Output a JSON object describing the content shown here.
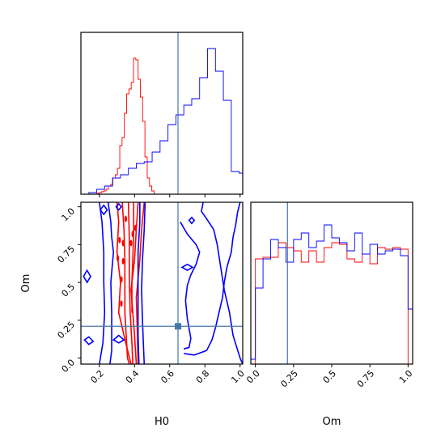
{
  "chart_data": {
    "type": "corner",
    "parameters": [
      "H0",
      "Om"
    ],
    "truth": {
      "H0": 0.647,
      "Om": 0.21
    },
    "colors": {
      "red": "#ff0000",
      "blue": "#0000ff",
      "truth": "#4477aa"
    },
    "panels": [
      {
        "id": "hist-H0",
        "type": "step-histogram",
        "xlim": [
          0.095,
          1.015
        ],
        "ylim": [
          0,
          1
        ],
        "xticks": [
          0.2,
          0.4,
          0.6,
          0.8,
          1.0
        ],
        "series": [
          {
            "name": "red",
            "color": "#ff0000",
            "edges": [
              0.095,
              0.108,
              0.121,
              0.134,
              0.147,
              0.16,
              0.173,
              0.186,
              0.199,
              0.212,
              0.225,
              0.238,
              0.251,
              0.264,
              0.277,
              0.29,
              0.303,
              0.316,
              0.329,
              0.342,
              0.355,
              0.368,
              0.381,
              0.394,
              0.407,
              0.42,
              0.433,
              0.446,
              0.459,
              0.472,
              0.485,
              0.498,
              0.511,
              0.524
            ],
            "heights": [
              0,
              0,
              0,
              0,
              0,
              0,
              0,
              0.005,
              0.01,
              0.015,
              0.02,
              0.03,
              0.05,
              0.06,
              0.1,
              0.12,
              0.16,
              0.3,
              0.35,
              0.5,
              0.62,
              0.65,
              0.69,
              0.84,
              0.83,
              0.71,
              0.6,
              0.45,
              0.23,
              0.1,
              0.05,
              0.02,
              0
            ]
          },
          {
            "name": "blue",
            "color": "#0000ff",
            "edges": [
              0.095,
              0.14,
              0.185,
              0.23,
              0.275,
              0.32,
              0.365,
              0.41,
              0.455,
              0.5,
              0.545,
              0.59,
              0.635,
              0.68,
              0.725,
              0.77,
              0.815,
              0.86,
              0.905,
              0.95,
              0.995,
              1.015
            ],
            "heights": [
              0,
              0.01,
              0.03,
              0.05,
              0.1,
              0.12,
              0.16,
              0.19,
              0.2,
              0.26,
              0.33,
              0.43,
              0.49,
              0.55,
              0.59,
              0.72,
              0.9,
              0.76,
              0.58,
              0.14,
              0.13
            ]
          }
        ]
      },
      {
        "id": "hist-Om",
        "type": "step-histogram",
        "xlim": [
          -0.03,
          1.03
        ],
        "ylim": [
          0,
          1
        ],
        "xticks": [
          0.0,
          0.25,
          0.5,
          0.75,
          1.0
        ],
        "series": [
          {
            "name": "red",
            "color": "#ff0000",
            "edges": [
              0,
              0.05,
              0.1,
              0.15,
              0.2,
              0.25,
              0.3,
              0.35,
              0.4,
              0.45,
              0.5,
              0.55,
              0.6,
              0.65,
              0.7,
              0.75,
              0.8,
              0.85,
              0.9,
              0.95,
              1.0
            ],
            "heights": [
              0.65,
              0.66,
              0.66,
              0.75,
              0.72,
              0.7,
              0.63,
              0.7,
              0.63,
              0.72,
              0.75,
              0.74,
              0.65,
              0.63,
              0.68,
              0.62,
              0.72,
              0.71,
              0.72,
              0.71
            ]
          },
          {
            "name": "blue",
            "color": "#0000ff",
            "edges": [
              -0.03,
              0,
              0.05,
              0.1,
              0.15,
              0.2,
              0.25,
              0.3,
              0.35,
              0.4,
              0.45,
              0.5,
              0.55,
              0.6,
              0.65,
              0.7,
              0.75,
              0.8,
              0.85,
              0.9,
              0.95,
              1.0,
              1.03
            ],
            "heights": [
              0.03,
              0.47,
              0.65,
              0.77,
              0.72,
              0.63,
              0.77,
              0.81,
              0.72,
              0.76,
              0.86,
              0.78,
              0.75,
              0.7,
              0.81,
              0.68,
              0.74,
              0.68,
              0.7,
              0.71,
              0.67,
              0.34
            ]
          }
        ]
      },
      {
        "id": "joint-H0-Om",
        "type": "contour",
        "xlim": [
          0.095,
          1.015
        ],
        "ylim": [
          -0.04,
          1.03
        ],
        "xticks": [
          0.2,
          0.4,
          0.6,
          0.8,
          1.0
        ],
        "yticks": [
          0.0,
          0.25,
          0.5,
          0.75,
          1.0
        ],
        "series": [
          {
            "name": "red",
            "color": "#ff0000",
            "contours": [
              [
                [
                  0.3,
                  1.03
                ],
                [
                  0.31,
                  0.9
                ],
                [
                  0.3,
                  0.7
                ],
                [
                  0.32,
                  0.5
                ],
                [
                  0.31,
                  0.3
                ],
                [
                  0.35,
                  0.1
                ],
                [
                  0.38,
                  -0.04
                ]
              ],
              [
                [
                  0.455,
                  1.03
                ],
                [
                  0.44,
                  0.85
                ],
                [
                  0.43,
                  0.65
                ],
                [
                  0.41,
                  0.4
                ],
                [
                  0.415,
                  0.2
                ],
                [
                  0.42,
                  -0.04
                ]
              ],
              [
                [
                  0.33,
                  1.03
                ],
                [
                  0.34,
                  0.85
                ],
                [
                  0.345,
                  0.65
                ],
                [
                  0.345,
                  0.45
                ],
                [
                  0.345,
                  0.3
                ],
                [
                  0.355,
                  0.1
                ],
                [
                  0.36,
                  0.0
                ],
                [
                  0.37,
                  -0.04
                ]
              ],
              [
                [
                  0.42,
                  1.03
                ],
                [
                  0.41,
                  0.85
                ],
                [
                  0.4,
                  0.65
                ],
                [
                  0.38,
                  0.45
                ],
                [
                  0.39,
                  0.3
                ],
                [
                  0.4,
                  0.15
                ],
                [
                  0.41,
                  -0.04
                ]
              ],
              [
                [
                  0.365,
                  1.03
                ],
                [
                  0.37,
                  0.8
                ],
                [
                  0.37,
                  0.55
                ],
                [
                  0.375,
                  0.3
                ],
                [
                  0.385,
                  0.1
                ],
                [
                  0.39,
                  -0.04
                ]
              ],
              [
                [
                  0.395,
                  1.03
                ],
                [
                  0.395,
                  0.85
                ],
                [
                  0.39,
                  0.65
                ],
                [
                  0.385,
                  0.5
                ],
                [
                  0.385,
                  0.3
                ]
              ]
            ],
            "dots": [
              [
                0.315,
                0.78
              ],
              [
                0.335,
                0.76
              ],
              [
                0.305,
                0.66
              ],
              [
                0.335,
                0.64
              ],
              [
                0.325,
                0.52
              ],
              [
                0.325,
                0.36
              ],
              [
                0.39,
                0.82
              ],
              [
                0.38,
                0.76
              ],
              [
                0.405,
                0.86
              ],
              [
                0.35,
                0.92
              ]
            ]
          },
          {
            "name": "blue",
            "color": "#0000ff",
            "contours": [
              [
                [
                  0.2,
                  1.03
                ],
                [
                  0.215,
                  0.9
                ],
                [
                  0.225,
                  0.7
                ],
                [
                  0.225,
                  0.5
                ],
                [
                  0.23,
                  0.3
                ],
                [
                  0.22,
                  0.1
                ],
                [
                  0.2,
                  -0.04
                ]
              ],
              [
                [
                  0.46,
                  1.03
                ],
                [
                  0.455,
                  0.85
                ],
                [
                  0.445,
                  0.65
                ],
                [
                  0.44,
                  0.45
                ],
                [
                  0.445,
                  0.25
                ],
                [
                  0.45,
                  0.1
                ],
                [
                  0.455,
                  -0.04
                ]
              ],
              [
                [
                  0.25,
                  1.03
                ],
                [
                  0.265,
                  0.9
                ],
                [
                  0.27,
                  0.8
                ],
                [
                  0.28,
                  0.7
                ],
                [
                  0.265,
                  0.5
                ],
                [
                  0.27,
                  0.3
                ],
                [
                  0.27,
                  0.15
                ],
                [
                  0.27,
                  0.05
                ],
                [
                  0.26,
                  -0.04
                ]
              ],
              [
                [
                  0.43,
                  1.03
                ],
                [
                  0.43,
                  0.9
                ],
                [
                  0.42,
                  0.7
                ],
                [
                  0.42,
                  0.5
                ],
                [
                  0.42,
                  0.3
                ],
                [
                  0.42,
                  0.15
                ],
                [
                  0.425,
                  -0.04
                ]
              ],
              [
                [
                  0.68,
                  0.03
                ],
                [
                  0.74,
                  0.02
                ],
                [
                  0.81,
                  0.05
                ],
                [
                  0.84,
                  0.12
                ],
                [
                  0.86,
                  0.2
                ],
                [
                  0.88,
                  0.3
                ],
                [
                  0.9,
                  0.4
                ],
                [
                  0.91,
                  0.5
                ],
                [
                  0.925,
                  0.6
                ],
                [
                  0.95,
                  0.7
                ],
                [
                  0.96,
                  0.8
                ],
                [
                  0.975,
                  0.88
                ],
                [
                  0.985,
                  0.96
                ],
                [
                  1.0,
                  1.03
                ]
              ],
              [
                [
                  0.66,
                  0.9
                ],
                [
                  0.7,
                  0.82
                ],
                [
                  0.75,
                  0.75
                ],
                [
                  0.77,
                  0.7
                ],
                [
                  0.75,
                  0.62
                ],
                [
                  0.72,
                  0.55
                ],
                [
                  0.7,
                  0.48
                ],
                [
                  0.69,
                  0.38
                ],
                [
                  0.7,
                  0.26
                ],
                [
                  0.72,
                  0.13
                ],
                [
                  0.71,
                  0.07
                ],
                [
                  0.68,
                  0.06
                ]
              ],
              [
                [
                  0.79,
                  1.03
                ],
                [
                  0.78,
                  0.97
                ],
                [
                  0.81,
                  0.92
                ],
                [
                  0.85,
                  0.85
                ],
                [
                  0.87,
                  0.75
                ],
                [
                  0.89,
                  0.6
                ],
                [
                  0.91,
                  0.45
                ],
                [
                  0.94,
                  0.3
                ],
                [
                  0.96,
                  0.15
                ],
                [
                  1.0,
                  0.0
                ],
                [
                  1.015,
                  -0.04
                ]
              ]
            ],
            "loops": [
              [
                [
                  0.14,
                  0.14
                ],
                [
                  0.165,
                  0.11
                ],
                [
                  0.14,
                  0.09
                ],
                [
                  0.115,
                  0.12
                ],
                [
                  0.14,
                  0.14
                ]
              ],
              [
                [
                  0.13,
                  0.58
                ],
                [
                  0.15,
                  0.54
                ],
                [
                  0.13,
                  0.5
                ],
                [
                  0.11,
                  0.54
                ],
                [
                  0.13,
                  0.58
                ]
              ],
              [
                [
                  0.31,
                  0.15
                ],
                [
                  0.34,
                  0.12
                ],
                [
                  0.31,
                  0.1
                ],
                [
                  0.28,
                  0.12
                ],
                [
                  0.31,
                  0.15
                ]
              ],
              [
                [
                  0.725,
                  0.93
                ],
                [
                  0.74,
                  0.91
                ],
                [
                  0.725,
                  0.89
                ],
                [
                  0.71,
                  0.91
                ],
                [
                  0.725,
                  0.93
                ]
              ],
              [
                [
                  0.7,
                  0.62
                ],
                [
                  0.73,
                  0.6
                ],
                [
                  0.7,
                  0.58
                ],
                [
                  0.67,
                  0.6
                ],
                [
                  0.7,
                  0.62
                ]
              ],
              [
                [
                  0.225,
                  1.01
                ],
                [
                  0.245,
                  0.98
                ],
                [
                  0.225,
                  0.95
                ],
                [
                  0.205,
                  0.98
                ],
                [
                  0.225,
                  1.01
                ]
              ],
              [
                [
                  0.31,
                  1.02
                ],
                [
                  0.325,
                  1.0
                ],
                [
                  0.31,
                  0.98
                ],
                [
                  0.295,
                  1.0
                ],
                [
                  0.31,
                  1.02
                ]
              ]
            ]
          }
        ]
      }
    ],
    "xlabels": [
      "H0",
      "Om"
    ],
    "ylabels": [
      "Om"
    ]
  }
}
